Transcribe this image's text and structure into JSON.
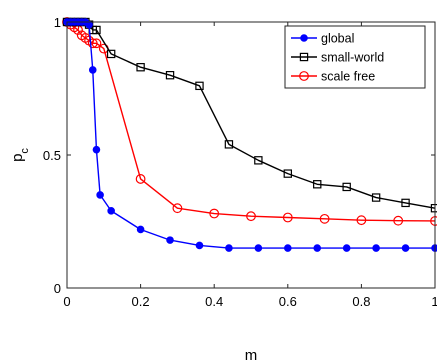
{
  "chart_data": {
    "type": "line",
    "title": "",
    "xlabel": "m",
    "ylabel_main": "p",
    "ylabel_sub": "c",
    "xlim": [
      0,
      1
    ],
    "ylim": [
      0,
      1
    ],
    "xticks": [
      0,
      0.2,
      0.4,
      0.6,
      0.8,
      1
    ],
    "xtick_labels": [
      "0",
      "0.2",
      "0.4",
      "0.6",
      "0.8",
      "1"
    ],
    "yticks": [
      0,
      0.5,
      1
    ],
    "ytick_labels": [
      "0",
      "0.5",
      "1"
    ],
    "grid": false,
    "legend_position": "top-right",
    "series": [
      {
        "name": "global",
        "color": "#0000ff",
        "marker": "filled-circle",
        "x": [
          0,
          0.01,
          0.02,
          0.03,
          0.04,
          0.05,
          0.06,
          0.07,
          0.08,
          0.09,
          0.12,
          0.2,
          0.28,
          0.36,
          0.44,
          0.52,
          0.6,
          0.68,
          0.76,
          0.84,
          0.92,
          1.0
        ],
        "y": [
          1.0,
          1.0,
          1.0,
          1.0,
          1.0,
          1.0,
          0.99,
          0.82,
          0.52,
          0.35,
          0.29,
          0.22,
          0.18,
          0.16,
          0.15,
          0.15,
          0.15,
          0.15,
          0.15,
          0.15,
          0.15,
          0.15
        ]
      },
      {
        "name": "small-world",
        "color": "#000000",
        "marker": "open-square",
        "x": [
          0,
          0.01,
          0.02,
          0.03,
          0.04,
          0.05,
          0.06,
          0.07,
          0.08,
          0.12,
          0.2,
          0.28,
          0.36,
          0.44,
          0.52,
          0.6,
          0.68,
          0.76,
          0.84,
          0.92,
          1.0
        ],
        "y": [
          1.0,
          1.0,
          1.0,
          1.0,
          1.0,
          1.0,
          0.99,
          0.97,
          0.97,
          0.88,
          0.83,
          0.8,
          0.76,
          0.54,
          0.48,
          0.43,
          0.39,
          0.38,
          0.34,
          0.32,
          0.3
        ]
      },
      {
        "name": "scale free",
        "color": "#ff0000",
        "marker": "open-circle",
        "x": [
          0,
          0.01,
          0.02,
          0.03,
          0.04,
          0.05,
          0.06,
          0.07,
          0.08,
          0.1,
          0.2,
          0.3,
          0.4,
          0.5,
          0.6,
          0.7,
          0.8,
          0.9,
          1.0
        ],
        "y": [
          1.0,
          0.99,
          0.98,
          0.97,
          0.95,
          0.94,
          0.93,
          0.92,
          0.92,
          0.9,
          0.41,
          0.3,
          0.28,
          0.27,
          0.265,
          0.26,
          0.255,
          0.253,
          0.252
        ]
      }
    ]
  }
}
